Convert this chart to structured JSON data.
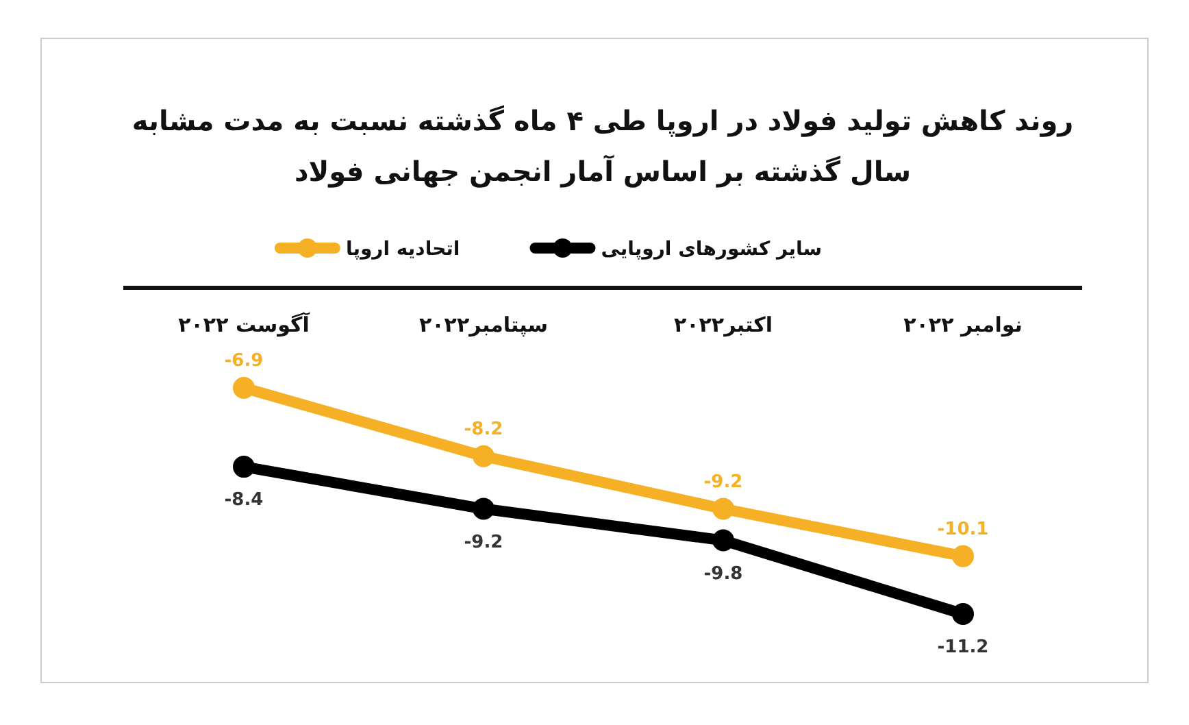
{
  "chart_data": {
    "type": "line",
    "title": "روند کاهش تولید فولاد در اروپا طی ۴ ماه گذشته نسبت به مدت مشابه سال گذشته بر اساس آمار انجمن جهانی فولاد",
    "categories": [
      "آگوست ۲۰۲۲",
      "سپتامبر۲۰۲۲",
      "اکتبر۲۰۲۲",
      "نوامبر ۲۰۲۲"
    ],
    "series": [
      {
        "name": "سایر کشورهای اروپایی",
        "color": "#000000",
        "values": [
          -8.4,
          -9.2,
          -9.8,
          -11.2
        ]
      },
      {
        "name": "اتحادیه اروپا",
        "color": "#f5b025",
        "values": [
          -6.9,
          -8.2,
          -9.2,
          -10.1
        ]
      }
    ],
    "data_labels": true,
    "legend": "top",
    "marker": "circle",
    "line_style": "solid",
    "grid": false
  }
}
